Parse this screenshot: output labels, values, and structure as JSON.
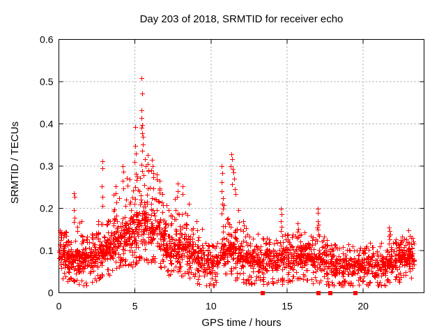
{
  "chart_data": {
    "type": "scatter",
    "title": "Day 203 of 2018, SRMTID for receiver echo",
    "xlabel": "GPS time / hours",
    "ylabel": "SRMTID / TECUs",
    "xlim": [
      0,
      24
    ],
    "ylim": [
      0,
      0.6
    ],
    "xticks": [
      {
        "v": 0,
        "label": "0"
      },
      {
        "v": 5,
        "label": "5"
      },
      {
        "v": 10,
        "label": "10"
      },
      {
        "v": 15,
        "label": "15"
      },
      {
        "v": 20,
        "label": "20"
      }
    ],
    "yticks": [
      {
        "v": 0,
        "label": "0"
      },
      {
        "v": 0.1,
        "label": "0.1"
      },
      {
        "v": 0.2,
        "label": "0.2"
      },
      {
        "v": 0.3,
        "label": "0.3"
      },
      {
        "v": 0.4,
        "label": "0.4"
      },
      {
        "v": 0.5,
        "label": "0.5"
      },
      {
        "v": 0.6,
        "label": "0.6"
      }
    ],
    "grid": {
      "on": true,
      "color": "#a0a0a0",
      "dash": "2,3",
      "legend": "none"
    },
    "marker": {
      "shape": "plus",
      "size": 7,
      "color": "#ff0000"
    },
    "axis_markers": {
      "shape": "filled-square",
      "color": "#ff0000",
      "size": 6,
      "y": 0,
      "x": [
        13.4,
        17.05,
        17.82,
        19.5
      ]
    },
    "seed": 2018203,
    "bins_format": "start_hour, width_hours, n_points, bulk_low_TECU, bulk_high_TECU, max_TECU",
    "density_bins": [
      [
        0.0,
        0.5,
        60,
        0.05,
        0.135,
        0.15
      ],
      [
        0.5,
        0.5,
        60,
        0.04,
        0.12,
        0.14
      ],
      [
        1.0,
        0.5,
        60,
        0.04,
        0.125,
        0.17
      ],
      [
        1.5,
        0.5,
        60,
        0.035,
        0.12,
        0.14
      ],
      [
        2.0,
        0.5,
        60,
        0.04,
        0.125,
        0.15
      ],
      [
        2.5,
        0.5,
        60,
        0.05,
        0.14,
        0.18
      ],
      [
        3.0,
        0.5,
        62,
        0.06,
        0.16,
        0.22
      ],
      [
        3.5,
        0.5,
        62,
        0.07,
        0.17,
        0.24
      ],
      [
        4.0,
        0.5,
        62,
        0.08,
        0.19,
        0.27
      ],
      [
        4.5,
        0.5,
        62,
        0.08,
        0.21,
        0.28
      ],
      [
        5.0,
        0.5,
        64,
        0.09,
        0.24,
        0.33
      ],
      [
        5.5,
        0.5,
        64,
        0.09,
        0.24,
        0.33
      ],
      [
        6.0,
        0.5,
        62,
        0.09,
        0.22,
        0.3
      ],
      [
        6.5,
        0.5,
        60,
        0.08,
        0.19,
        0.25
      ],
      [
        7.0,
        0.5,
        58,
        0.06,
        0.16,
        0.21
      ],
      [
        7.5,
        0.5,
        58,
        0.06,
        0.16,
        0.24
      ],
      [
        8.0,
        0.5,
        55,
        0.06,
        0.16,
        0.24
      ],
      [
        8.5,
        0.5,
        55,
        0.05,
        0.14,
        0.2
      ],
      [
        9.0,
        0.5,
        52,
        0.04,
        0.13,
        0.16
      ],
      [
        9.5,
        0.5,
        48,
        0.03,
        0.11,
        0.13
      ],
      [
        10.0,
        0.5,
        48,
        0.03,
        0.11,
        0.14
      ],
      [
        10.5,
        0.5,
        50,
        0.05,
        0.14,
        0.22
      ],
      [
        11.0,
        0.5,
        52,
        0.06,
        0.15,
        0.24
      ],
      [
        11.5,
        0.5,
        52,
        0.05,
        0.14,
        0.2
      ],
      [
        12.0,
        0.5,
        50,
        0.04,
        0.12,
        0.16
      ],
      [
        12.5,
        0.5,
        50,
        0.04,
        0.11,
        0.14
      ],
      [
        13.0,
        0.5,
        50,
        0.04,
        0.115,
        0.15
      ],
      [
        13.5,
        0.5,
        48,
        0.04,
        0.115,
        0.14
      ],
      [
        14.0,
        0.5,
        48,
        0.04,
        0.11,
        0.13
      ],
      [
        14.5,
        0.5,
        50,
        0.04,
        0.12,
        0.14
      ],
      [
        15.0,
        0.5,
        50,
        0.04,
        0.12,
        0.14
      ],
      [
        15.5,
        0.5,
        52,
        0.05,
        0.13,
        0.16
      ],
      [
        16.0,
        0.5,
        52,
        0.05,
        0.13,
        0.15
      ],
      [
        16.5,
        0.5,
        50,
        0.04,
        0.12,
        0.14
      ],
      [
        17.0,
        0.5,
        50,
        0.04,
        0.12,
        0.15
      ],
      [
        17.5,
        0.5,
        48,
        0.035,
        0.11,
        0.13
      ],
      [
        18.0,
        0.5,
        48,
        0.03,
        0.1,
        0.12
      ],
      [
        18.5,
        0.5,
        48,
        0.03,
        0.1,
        0.115
      ],
      [
        19.0,
        0.5,
        48,
        0.03,
        0.1,
        0.12
      ],
      [
        19.5,
        0.5,
        48,
        0.035,
        0.1,
        0.115
      ],
      [
        20.0,
        0.5,
        48,
        0.035,
        0.105,
        0.12
      ],
      [
        20.5,
        0.5,
        46,
        0.03,
        0.09,
        0.11
      ],
      [
        21.0,
        0.5,
        46,
        0.03,
        0.095,
        0.12
      ],
      [
        21.5,
        0.5,
        52,
        0.04,
        0.115,
        0.14
      ],
      [
        22.0,
        0.5,
        56,
        0.045,
        0.115,
        0.13
      ],
      [
        22.5,
        0.5,
        56,
        0.05,
        0.12,
        0.14
      ],
      [
        23.0,
        0.35,
        40,
        0.05,
        0.115,
        0.13
      ]
    ],
    "notable_points": [
      [
        0.08,
        0.145
      ],
      [
        0.15,
        0.132
      ],
      [
        0.97,
        0.235
      ],
      [
        1.02,
        0.227
      ],
      [
        0.99,
        0.196
      ],
      [
        1.03,
        0.178
      ],
      [
        1.0,
        0.168
      ],
      [
        2.84,
        0.312
      ],
      [
        2.86,
        0.295
      ],
      [
        2.83,
        0.252
      ],
      [
        2.87,
        0.227
      ],
      [
        2.85,
        0.205
      ],
      [
        3.72,
        0.252
      ],
      [
        3.75,
        0.235
      ],
      [
        4.18,
        0.3
      ],
      [
        4.22,
        0.287
      ],
      [
        4.2,
        0.265
      ],
      [
        4.48,
        0.272
      ],
      [
        4.52,
        0.254
      ],
      [
        4.98,
        0.31
      ],
      [
        5.0,
        0.348
      ],
      [
        5.02,
        0.392
      ],
      [
        5.04,
        0.33
      ],
      [
        5.44,
        0.508
      ],
      [
        5.46,
        0.472
      ],
      [
        5.43,
        0.432
      ],
      [
        5.45,
        0.414
      ],
      [
        5.47,
        0.397
      ],
      [
        5.43,
        0.391
      ],
      [
        5.46,
        0.378
      ],
      [
        5.5,
        0.37
      ],
      [
        5.52,
        0.352
      ],
      [
        5.48,
        0.337
      ],
      [
        5.85,
        0.305
      ],
      [
        5.88,
        0.288
      ],
      [
        6.1,
        0.315
      ],
      [
        6.14,
        0.3
      ],
      [
        6.05,
        0.29
      ],
      [
        6.2,
        0.283
      ],
      [
        6.6,
        0.265
      ],
      [
        6.63,
        0.247
      ],
      [
        7.8,
        0.258
      ],
      [
        7.83,
        0.241
      ],
      [
        7.78,
        0.227
      ],
      [
        8.12,
        0.252
      ],
      [
        8.15,
        0.234
      ],
      [
        8.55,
        0.21
      ],
      [
        9.05,
        0.17
      ],
      [
        10.7,
        0.3
      ],
      [
        10.74,
        0.284
      ],
      [
        10.71,
        0.262
      ],
      [
        10.68,
        0.24
      ],
      [
        10.77,
        0.224
      ],
      [
        11.32,
        0.328
      ],
      [
        11.36,
        0.317
      ],
      [
        11.3,
        0.3
      ],
      [
        11.42,
        0.294
      ],
      [
        11.46,
        0.285
      ],
      [
        11.5,
        0.271
      ],
      [
        11.38,
        0.257
      ],
      [
        11.55,
        0.245
      ],
      [
        11.6,
        0.234
      ],
      [
        12.1,
        0.17
      ],
      [
        12.14,
        0.159
      ],
      [
        14.6,
        0.2
      ],
      [
        14.62,
        0.186
      ],
      [
        14.58,
        0.17
      ],
      [
        14.63,
        0.157
      ],
      [
        14.6,
        0.146
      ],
      [
        15.7,
        0.165
      ],
      [
        15.74,
        0.151
      ],
      [
        17.0,
        0.2
      ],
      [
        17.03,
        0.19
      ],
      [
        17.0,
        0.17
      ],
      [
        17.05,
        0.161
      ],
      [
        16.98,
        0.155
      ],
      [
        17.02,
        0.149
      ],
      [
        21.7,
        0.155
      ],
      [
        21.73,
        0.146
      ],
      [
        21.68,
        0.135
      ],
      [
        21.75,
        0.126
      ],
      [
        21.7,
        0.117
      ],
      [
        22.95,
        0.148
      ],
      [
        23.05,
        0.134
      ]
    ]
  }
}
